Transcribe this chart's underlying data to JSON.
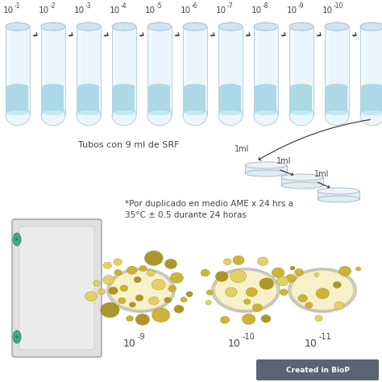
{
  "background_color": "#ffffff",
  "tube_label": "Tubos con 9 ml de SRF",
  "dilutions_exp": [
    "-1",
    "-2",
    "-3",
    "-4",
    "-5",
    "-6",
    "-7",
    "-8",
    "-9",
    "-10"
  ],
  "petri_labels_exp": [
    "-9",
    "-10",
    "-11"
  ],
  "ml_labels": [
    "1ml",
    "1ml",
    "1ml"
  ],
  "note_text": "*Por duplicado en medio AME x 24 hrs a\n35°C ± 0.5 durante 24 horas",
  "tube_fill_color": "#add8e6",
  "tube_body_color": "#eaf6fb",
  "tube_outline_color": "#b0c8d8",
  "tube_cap_color": "#d0e4ee",
  "petri_fill_color": "#f7f0c8",
  "petri_outline_color": "#b8b8b8",
  "petri_side_color": "#ddeef5",
  "colony_color_main": "#c8b030",
  "colony_color_dark": "#a89020",
  "colony_color_light": "#e0d060",
  "arrow_color": "#444444",
  "text_color": "#444444",
  "watermark_bg": "#5a6472",
  "watermark_text": "Created in BioP",
  "watermark_color": "#ffffff",
  "num_tubes": 11,
  "panel_bg": "#e0e0e0",
  "panel_inner": "#ebebeb",
  "panel_clip": "#3daa88"
}
